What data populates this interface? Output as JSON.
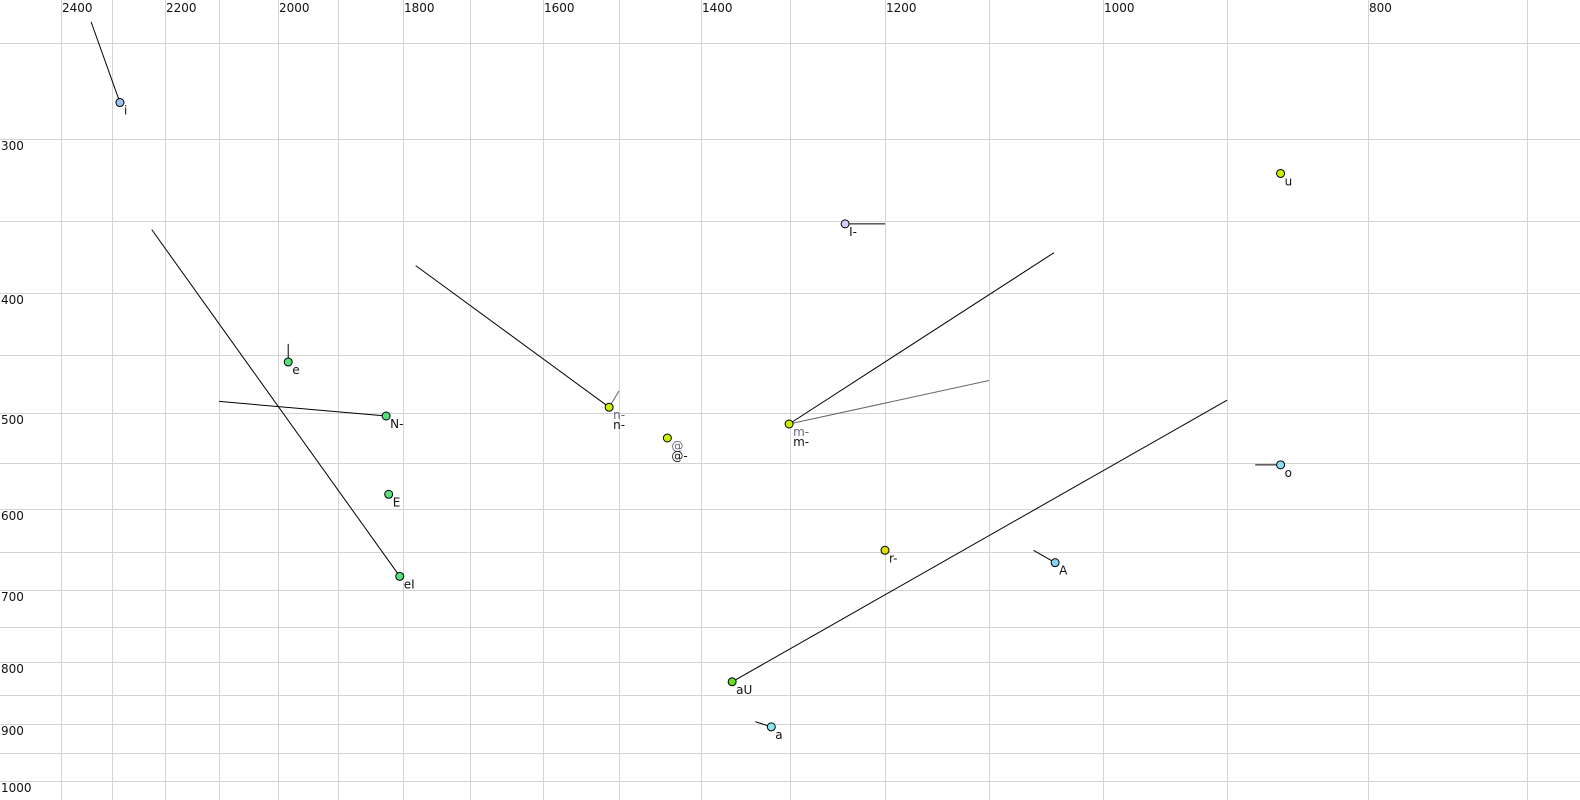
{
  "chart_data": {
    "type": "scatter",
    "title": "",
    "xlabel": "",
    "ylabel": "",
    "x_axis": {
      "reversed": true,
      "position": "top",
      "range": [
        2400,
        700
      ],
      "tick_labels": [
        2400,
        2200,
        2000,
        1800,
        1600,
        1400,
        1200,
        1000,
        800
      ],
      "grid_step": 100
    },
    "y_axis": {
      "reversed": false,
      "position": "left",
      "range": [
        250,
        1000
      ],
      "tick_labels": [
        300,
        400,
        500,
        600,
        700,
        800,
        900,
        1000
      ],
      "grid_step": 50
    },
    "grid": true,
    "points": [
      {
        "label": "i",
        "f2": 2285,
        "f1": 281,
        "color": "#9cc4f0",
        "trail": [
          [
            2341,
            239
          ]
        ]
      },
      {
        "label": "e",
        "f2": 1983,
        "f1": 456,
        "color": "#55e07a",
        "trail": [
          [
            1983,
            441
          ]
        ]
      },
      {
        "label": "N-",
        "f2": 1826,
        "f1": 503,
        "color": "#55e07a",
        "trail": [
          [
            2100,
            490
          ]
        ]
      },
      {
        "label": "E",
        "f2": 1822,
        "f1": 584,
        "color": "#55e07a",
        "trail": []
      },
      {
        "label": "eI",
        "f2": 1805,
        "f1": 682,
        "color": "#55e07a",
        "trail": [
          [
            2225,
            356
          ]
        ]
      },
      {
        "label": "n-",
        "label2": "n-",
        "f2": 1513,
        "f1": 495,
        "color": "#ccee00",
        "trail": [
          [
            1781,
            381
          ]
        ],
        "trail2": [
          [
            1500,
            481
          ]
        ]
      },
      {
        "label": "@",
        "label2": "@-",
        "f2": 1441,
        "f1": 525,
        "color": "#ccee00",
        "trail": []
      },
      {
        "label": "m-",
        "label2": "m-",
        "f2": 1301,
        "f1": 511,
        "color": "#ccee00",
        "trail": [
          [
            1043,
            372
          ]
        ],
        "trail2": [
          [
            1100,
            472
          ]
        ]
      },
      {
        "label": "I-",
        "f2": 1242,
        "f1": 352,
        "color": "#d0d0f8",
        "trail": [
          [
            1200,
            352
          ]
        ]
      },
      {
        "label": "u",
        "f2": 862,
        "f1": 321,
        "color": "#ccee00",
        "trail": []
      },
      {
        "label": "o",
        "f2": 862,
        "f1": 552,
        "color": "#88e0f0",
        "trail": [
          [
            880,
            552
          ]
        ]
      },
      {
        "label": "r-",
        "f2": 1200,
        "f1": 648,
        "color": "#dddd00",
        "trail": [
          [
            1200,
            644
          ]
        ]
      },
      {
        "label": "A",
        "f2": 1042,
        "f1": 664,
        "color": "#88d0f0",
        "trail": [
          [
            1061,
            648
          ]
        ]
      },
      {
        "label": "aU",
        "f2": 1365,
        "f1": 830,
        "color": "#66dd22",
        "trail": [
          [
            900,
            489
          ]
        ]
      },
      {
        "label": "a",
        "f2": 1321,
        "f1": 905,
        "color": "#88e8f0",
        "trail": [
          [
            1339,
            896
          ]
        ]
      }
    ]
  }
}
